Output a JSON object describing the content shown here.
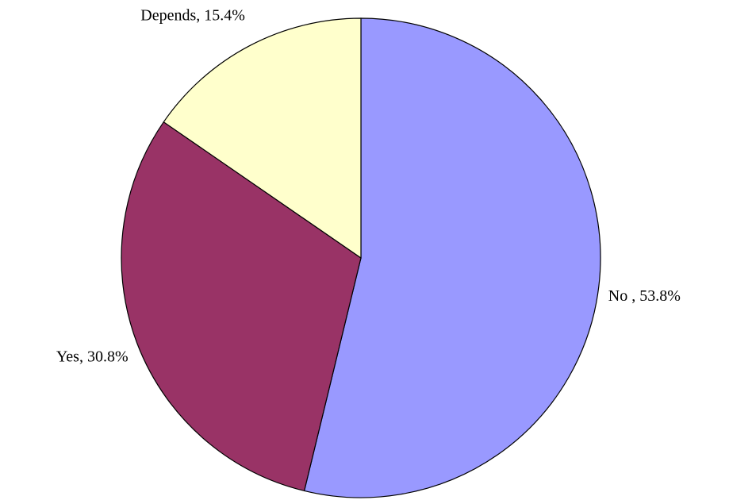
{
  "chart_data": {
    "type": "pie",
    "values": [
      53.8,
      30.8,
      15.4
    ],
    "value_labels": [
      "No , 53.8%",
      "Yes, 30.8%",
      "Depends, 15.4%"
    ],
    "colors": [
      "#9999ff",
      "#993366",
      "#ffffcc"
    ]
  }
}
